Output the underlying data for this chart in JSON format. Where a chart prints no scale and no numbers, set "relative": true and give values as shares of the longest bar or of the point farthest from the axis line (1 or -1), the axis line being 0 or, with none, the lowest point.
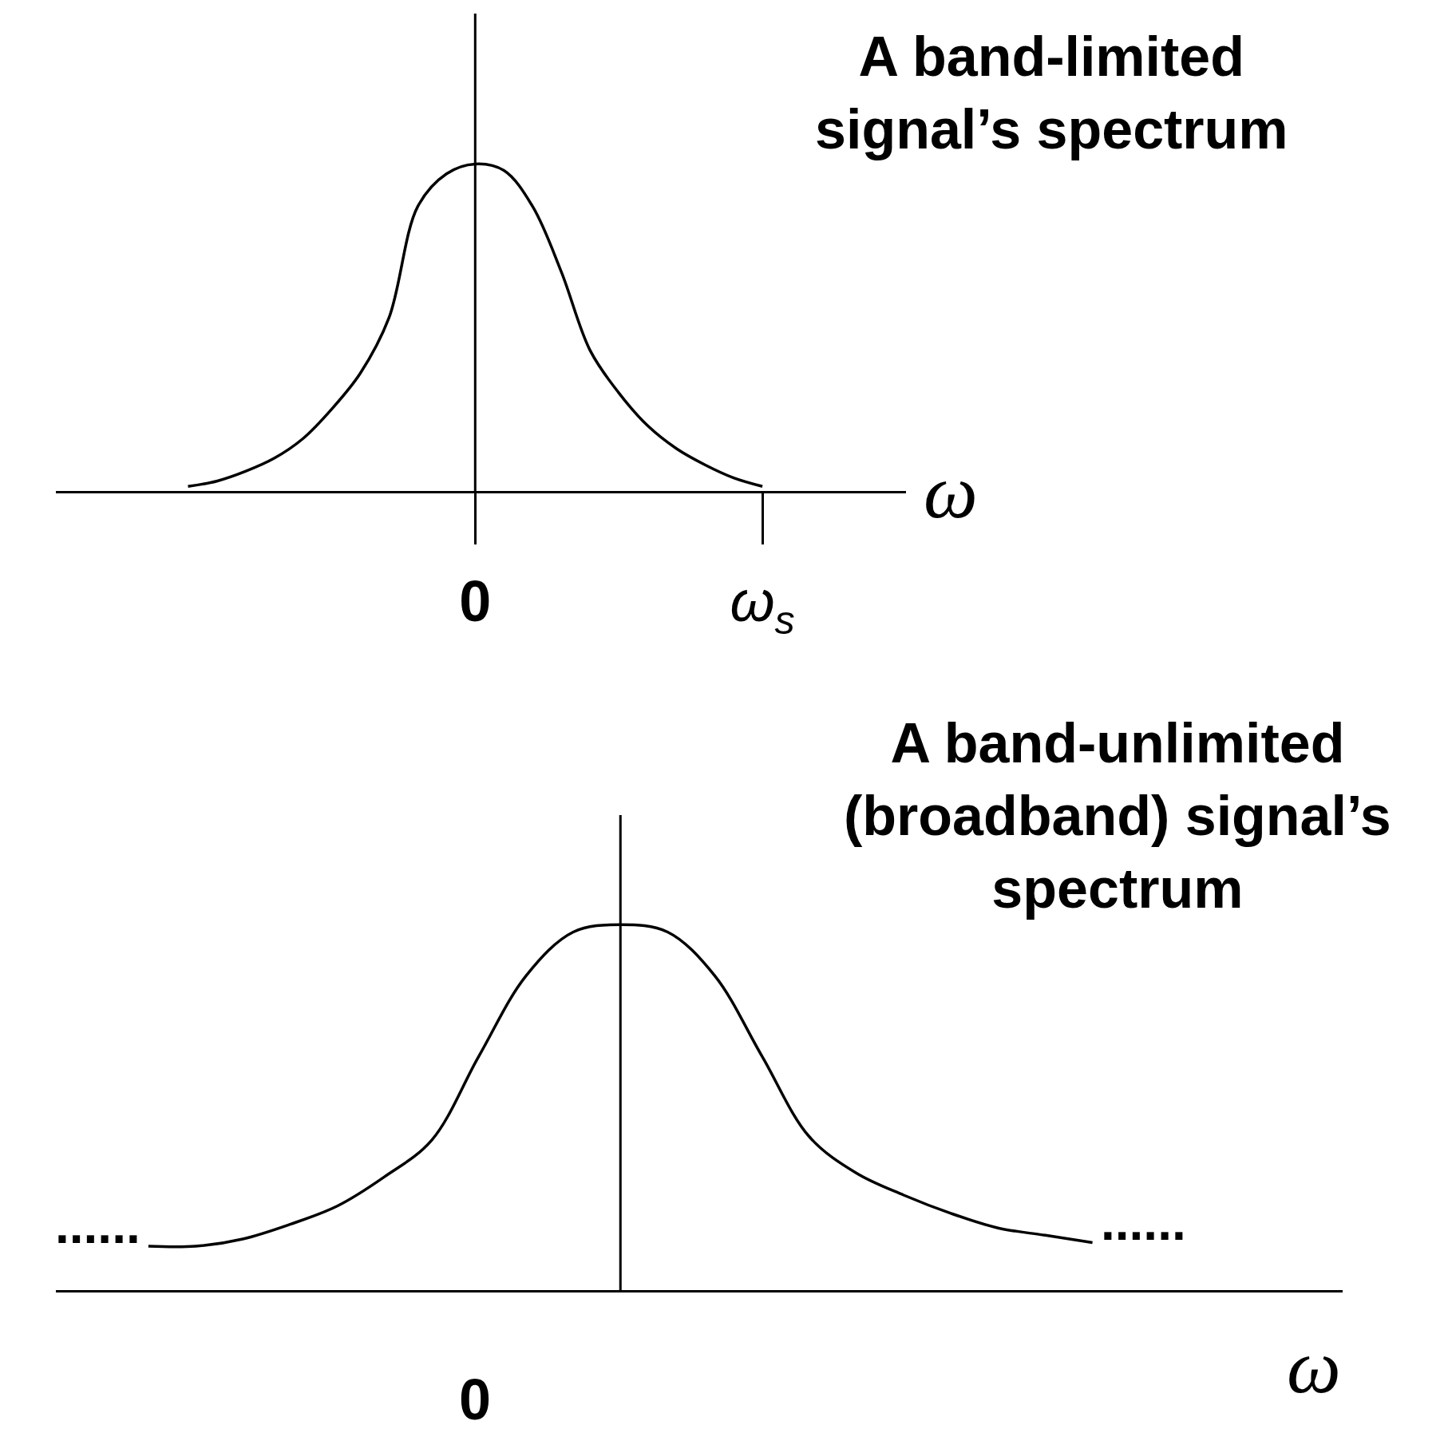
{
  "chart_data": [
    {
      "type": "line",
      "title": "A band-limited\nsignal’s spectrum",
      "xlabel": "ω",
      "relative": true,
      "categories": [
        null,
        null,
        null,
        null,
        null,
        null,
        null,
        null,
        null,
        null,
        "0",
        null,
        null,
        null,
        null,
        null,
        null,
        null,
        null,
        null,
        "ω$_{s}$"
      ],
      "series": [
        {
          "color": "#000000",
          "values": [
            0.014,
            0.03,
            0.06,
            0.1,
            0.16,
            0.25,
            0.36,
            0.53,
            0.87,
            0.97,
            1,
            0.98,
            0.87,
            0.67,
            0.43,
            0.3,
            0.2,
            0.13,
            0.08,
            0.04,
            0.014
          ]
        }
      ]
    },
    {
      "type": "line",
      "title": "A band-unlimited\n(broadband) signal’s\nspectrum",
      "xlabel": "ω",
      "relative": true,
      "categories": [
        null,
        null,
        null,
        null,
        null,
        null,
        null,
        null,
        null,
        null,
        null,
        null,
        null,
        null,
        null,
        null,
        null,
        null,
        null,
        null,
        null
      ],
      "series": [
        {
          "color": "#000000",
          "values": [
            0.12,
            0.12,
            0.14,
            0.18,
            0.23,
            0.31,
            0.41,
            0.64,
            0.86,
            0.98,
            1,
            0.98,
            0.86,
            0.64,
            0.42,
            0.32,
            0.26,
            0.21,
            0.17,
            0.15,
            0.13
          ]
        }
      ],
      "annotations": [
        "0",
        "......",
        "......"
      ]
    }
  ]
}
